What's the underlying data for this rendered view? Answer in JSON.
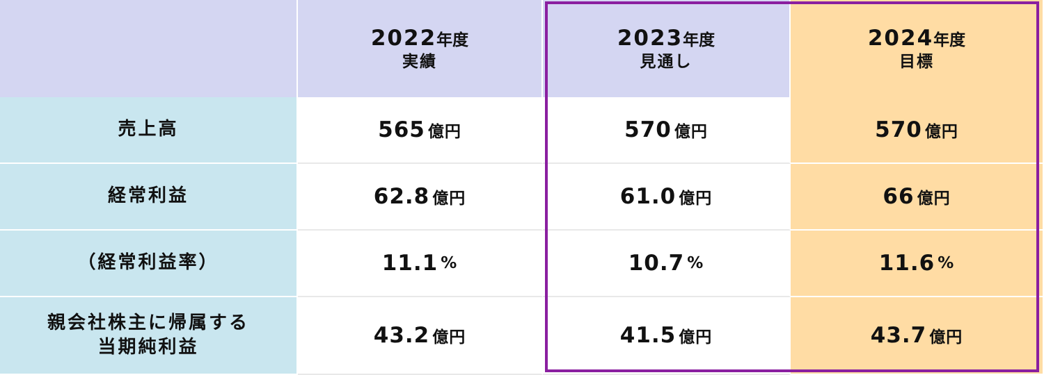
{
  "headers": [
    {
      "year": "",
      "suffix": "",
      "sub": ""
    },
    {
      "year": "2022",
      "suffix": "年度",
      "sub": "実績"
    },
    {
      "year": "2023",
      "suffix": "年度",
      "sub": "見通し"
    },
    {
      "year": "2024",
      "suffix": "年度",
      "sub": "目標"
    }
  ],
  "rows": [
    {
      "label": "売上高",
      "values": [
        {
          "num": "565",
          "unit": "億円"
        },
        {
          "num": "570",
          "unit": "億円"
        },
        {
          "num": "570",
          "unit": "億円"
        }
      ]
    },
    {
      "label": "経常利益",
      "values": [
        {
          "num": "62.8",
          "unit": "億円"
        },
        {
          "num": "61.0",
          "unit": "億円"
        },
        {
          "num": "66",
          "unit": "億円"
        }
      ]
    },
    {
      "label": "（経常利益率）",
      "values": [
        {
          "num": "11.1",
          "unit": "%"
        },
        {
          "num": "10.7",
          "unit": "%"
        },
        {
          "num": "11.6",
          "unit": "%"
        }
      ]
    },
    {
      "label_line1": "親会社株主に帰属する",
      "label_line2": "当期純利益",
      "values": [
        {
          "num": "43.2",
          "unit": "億円"
        },
        {
          "num": "41.5",
          "unit": "億円"
        },
        {
          "num": "43.7",
          "unit": "億円"
        }
      ]
    }
  ],
  "colors": {
    "header_bg": "#d4d6f2",
    "label_bg": "#c9e6ef",
    "target_bg": "#ffdca4",
    "highlight_frame": "#8a1fa0"
  }
}
